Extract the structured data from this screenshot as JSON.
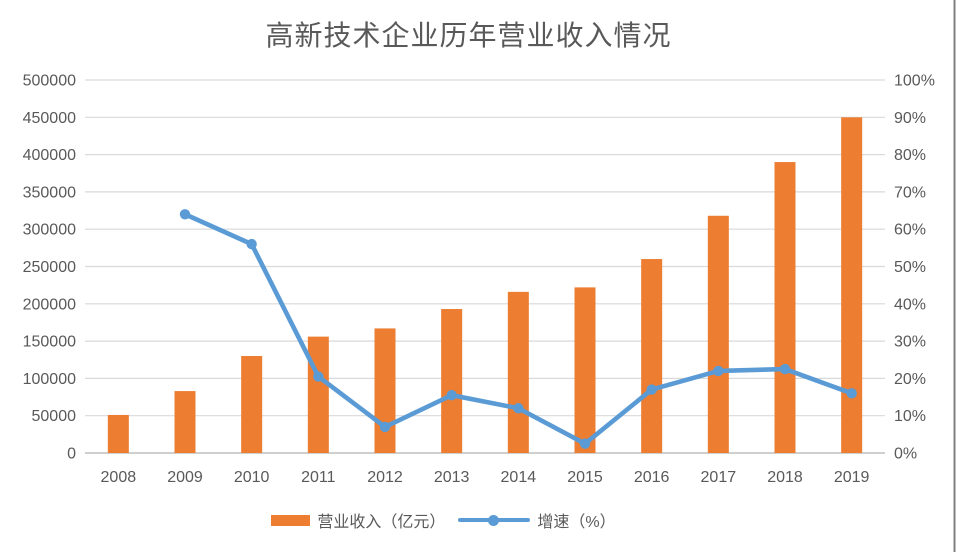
{
  "title": "高新技术企业历年营业收入情况",
  "colors": {
    "bar": "#ED7D31",
    "line": "#5B9BD5",
    "marker": "#5B9BD5",
    "gridline": "#D9D9D9",
    "axis_baseline": "#BFBFBF",
    "text": "#595959",
    "right_edge_border": "#7F7F7F"
  },
  "legend": {
    "items": [
      {
        "label": "营业收入（亿元）",
        "type": "bar"
      },
      {
        "label": "增速（%）",
        "type": "line"
      }
    ]
  },
  "chart_data": {
    "type": "bar",
    "subtype": "bar-line-combo",
    "title": "高新技术企业历年营业收入情况",
    "categories": [
      "2008",
      "2009",
      "2010",
      "2011",
      "2012",
      "2013",
      "2014",
      "2015",
      "2016",
      "2017",
      "2018",
      "2019"
    ],
    "series": [
      {
        "name": "营业收入（亿元）",
        "type": "bar",
        "axis": "left",
        "color": "#ED7D31",
        "values": [
          51000,
          83000,
          130000,
          156000,
          167000,
          193000,
          216000,
          222000,
          260000,
          318000,
          390000,
          450000
        ]
      },
      {
        "name": "增速（%）",
        "type": "line",
        "axis": "right",
        "color": "#5B9BD5",
        "values": [
          null,
          64,
          56,
          20.5,
          7,
          15.5,
          12,
          2.5,
          17,
          22,
          22.5,
          16
        ]
      }
    ],
    "left_axis": {
      "min": 0,
      "max": 500000,
      "step": 50000,
      "tick_labels": [
        "0",
        "50000",
        "100000",
        "150000",
        "200000",
        "250000",
        "300000",
        "350000",
        "400000",
        "450000",
        "500000"
      ]
    },
    "right_axis": {
      "min": 0,
      "max": 100,
      "step": 10,
      "tick_labels": [
        "0%",
        "10%",
        "20%",
        "30%",
        "40%",
        "50%",
        "60%",
        "70%",
        "80%",
        "90%",
        "100%"
      ]
    },
    "xlabel": "",
    "ylabel": "",
    "grid": true,
    "legend_position": "bottom"
  }
}
